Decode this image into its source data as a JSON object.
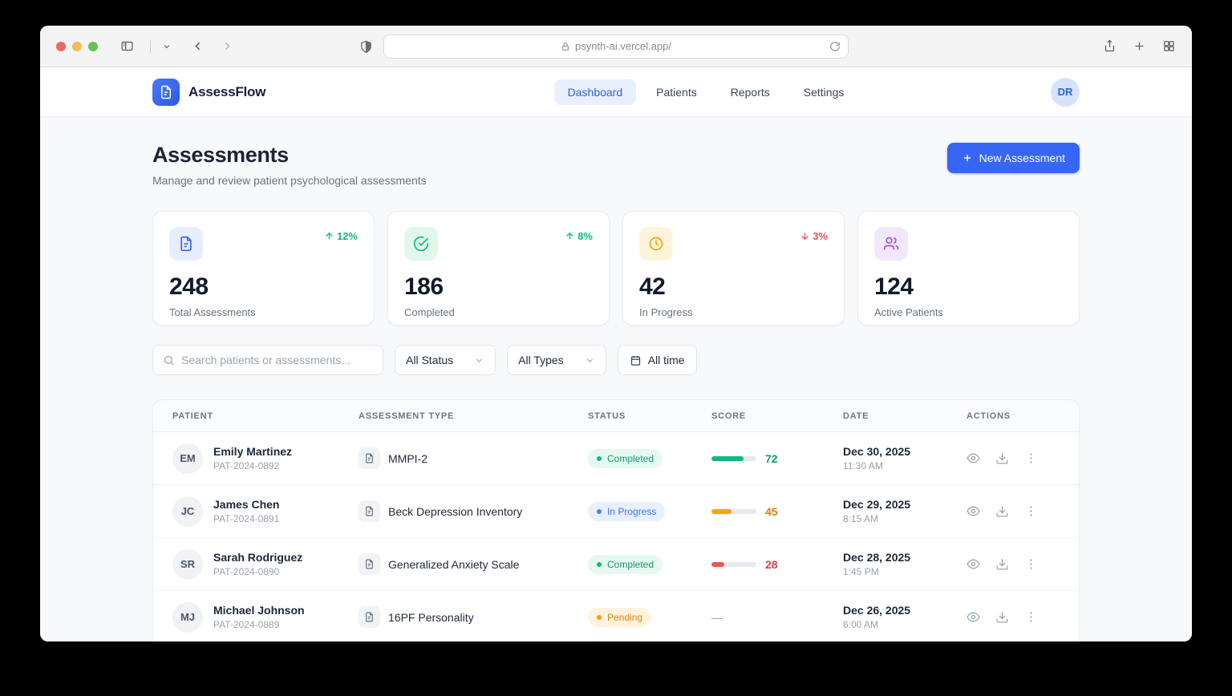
{
  "browser": {
    "url": "psynth-ai.vercel.app/"
  },
  "colors": {
    "accent_blue": "#3766f3",
    "success_green": "#10b981",
    "warning_amber": "#f59e0b",
    "danger_red": "#ef5350",
    "purple": "#a24df0"
  },
  "header": {
    "brand": "AssessFlow",
    "nav": [
      {
        "label": "Dashboard",
        "active": true
      },
      {
        "label": "Patients",
        "active": false
      },
      {
        "label": "Reports",
        "active": false
      },
      {
        "label": "Settings",
        "active": false
      }
    ],
    "avatar_initials": "DR"
  },
  "page": {
    "title": "Assessments",
    "subtitle": "Manage and review patient psychological assessments",
    "new_assessment_label": "New Assessment"
  },
  "stats": [
    {
      "value": "248",
      "label": "Total Assessments",
      "trend": "12%",
      "trend_dir": "up",
      "icon": "document-icon"
    },
    {
      "value": "186",
      "label": "Completed",
      "trend": "8%",
      "trend_dir": "up",
      "icon": "check-circle-icon"
    },
    {
      "value": "42",
      "label": "In Progress",
      "trend": "3%",
      "trend_dir": "down",
      "icon": "clock-icon"
    },
    {
      "value": "124",
      "label": "Active Patients",
      "trend": null,
      "icon": "users-icon"
    }
  ],
  "filters": {
    "search_placeholder": "Search patients or assessments...",
    "status_value": "All Status",
    "type_value": "All Types",
    "time_value": "All time"
  },
  "table": {
    "columns": [
      "Patient",
      "Assessment Type",
      "Status",
      "Score",
      "Date",
      "Actions"
    ],
    "rows": [
      {
        "initials": "EM",
        "name": "Emily Martinez",
        "patient_id": "PAT-2024-0892",
        "assessment": "MMPI-2",
        "status": "Completed",
        "score": 72,
        "date": "Dec 30, 2025",
        "time": "11:30 AM"
      },
      {
        "initials": "JC",
        "name": "James Chen",
        "patient_id": "PAT-2024-0891",
        "assessment": "Beck Depression Inventory",
        "status": "In Progress",
        "score": 45,
        "date": "Dec 29, 2025",
        "time": "8:15 AM"
      },
      {
        "initials": "SR",
        "name": "Sarah Rodriguez",
        "patient_id": "PAT-2024-0890",
        "assessment": "Generalized Anxiety Scale",
        "status": "Completed",
        "score": 28,
        "date": "Dec 28, 2025",
        "time": "1:45 PM"
      },
      {
        "initials": "MJ",
        "name": "Michael Johnson",
        "patient_id": "PAT-2024-0889",
        "assessment": "16PF Personality",
        "status": "Pending",
        "score": null,
        "score_display": "—",
        "date": "Dec 26, 2025",
        "time": "6:00 AM"
      }
    ]
  }
}
